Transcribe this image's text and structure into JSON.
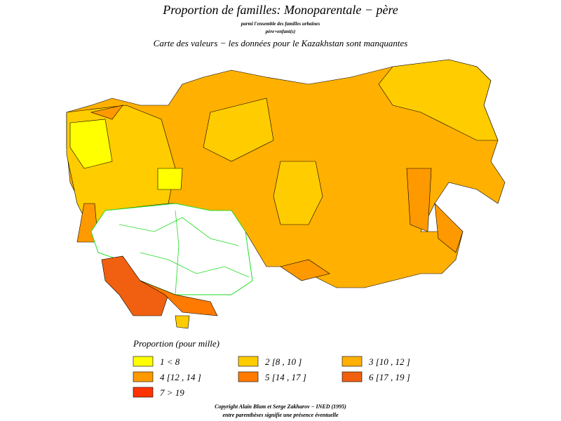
{
  "header": {
    "title": "Proportion de familles: Monoparentale − père",
    "subtitle_1": "parmi l'ensemble des familles urbaines",
    "subtitle_2": "père+enfant(s)",
    "subtitle_3": "Carte des valeurs − les données pour le Kazakhstan sont manquantes"
  },
  "legend": {
    "title": "Proportion (pour mille)",
    "items": [
      {
        "label": "1  <  8",
        "color": "#ffff00"
      },
      {
        "label": "2  [8 , 10 ]",
        "color": "#ffcc00"
      },
      {
        "label": "3  [10 , 12 ]",
        "color": "#ffb000"
      },
      {
        "label": "4  [12 , 14 ]",
        "color": "#ff9900"
      },
      {
        "label": "5  [14 , 17 ]",
        "color": "#ff7a00"
      },
      {
        "label": "6  [17 , 19 ]",
        "color": "#f06010"
      },
      {
        "label": "7  >  19",
        "color": "#ff3300"
      }
    ]
  },
  "footer": {
    "line_1": "Copyright Alain Blum et Serge Zakharov − INED (1995)",
    "line_2": "entre parenthèses signifie une présence éventuelle"
  }
}
